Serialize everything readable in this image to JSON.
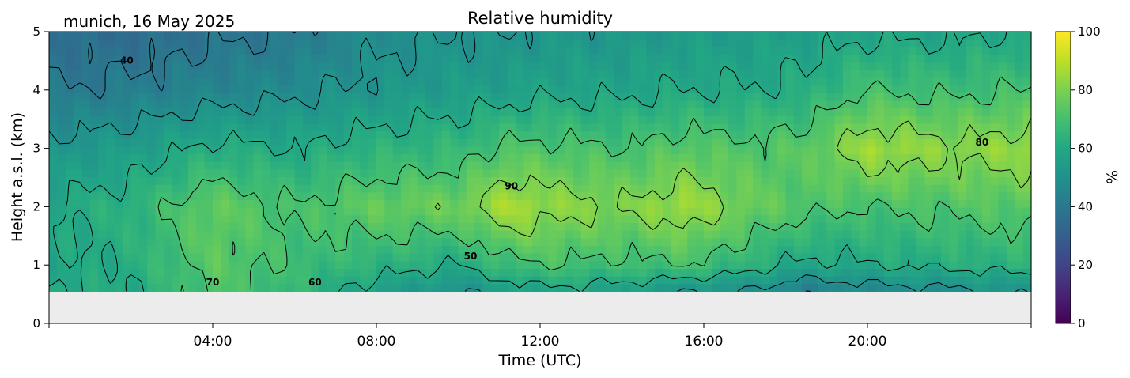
{
  "header": {
    "location_date": "munich, 16 May 2025"
  },
  "chart_data": {
    "type": "heatmap",
    "title": "Relative humidity",
    "xlabel": "Time (UTC)",
    "ylabel": "Height a.s.l. (km)",
    "xlim_hours": [
      0,
      24
    ],
    "ylim_km": [
      0,
      5
    ],
    "x_ticks": [
      {
        "hour": 4,
        "label": "04:00"
      },
      {
        "hour": 8,
        "label": "08:00"
      },
      {
        "hour": 12,
        "label": "12:00"
      },
      {
        "hour": 16,
        "label": "16:00"
      },
      {
        "hour": 20,
        "label": "20:00"
      }
    ],
    "y_ticks": [
      {
        "value": 0,
        "label": "0"
      },
      {
        "value": 1,
        "label": "1"
      },
      {
        "value": 2,
        "label": "2"
      },
      {
        "value": 3,
        "label": "3"
      },
      {
        "value": 4,
        "label": "4"
      },
      {
        "value": 5,
        "label": "5"
      }
    ],
    "data_bottom_km": 0.55,
    "no_data_color": "#ececec",
    "colorbar": {
      "label": "%",
      "range": [
        0,
        100
      ],
      "colormap": "viridis",
      "ticks": [
        {
          "value": 0,
          "label": "0"
        },
        {
          "value": 20,
          "label": "20"
        },
        {
          "value": 40,
          "label": "40"
        },
        {
          "value": 60,
          "label": "60"
        },
        {
          "value": 80,
          "label": "80"
        },
        {
          "value": 100,
          "label": "100"
        }
      ]
    },
    "contour_levels": [
      40,
      50,
      60,
      70,
      80,
      90
    ],
    "contour_labels": [
      {
        "text": "40",
        "hour": 1.9,
        "km": 4.45
      },
      {
        "text": "70",
        "hour": 4.0,
        "km": 0.65
      },
      {
        "text": "60",
        "hour": 6.5,
        "km": 0.65
      },
      {
        "text": "50",
        "hour": 10.3,
        "km": 1.1
      },
      {
        "text": "90",
        "hour": 11.3,
        "km": 2.3
      },
      {
        "text": "80",
        "hour": 22.8,
        "km": 3.05
      }
    ],
    "humidity_profile_columns": [
      {
        "hour": 0.0,
        "rh_at_km": [
          [
            0.55,
            62
          ],
          [
            1.0,
            58
          ],
          [
            2.0,
            60
          ],
          [
            3.0,
            52
          ],
          [
            4.0,
            40
          ],
          [
            5.0,
            36
          ]
        ]
      },
      {
        "hour": 2.0,
        "rh_at_km": [
          [
            0.55,
            60
          ],
          [
            1.0,
            62
          ],
          [
            2.0,
            64
          ],
          [
            3.0,
            55
          ],
          [
            4.0,
            42
          ],
          [
            5.0,
            35
          ]
        ]
      },
      {
        "hour": 4.0,
        "rh_at_km": [
          [
            0.55,
            72
          ],
          [
            1.0,
            74
          ],
          [
            2.0,
            76
          ],
          [
            3.0,
            62
          ],
          [
            4.0,
            45
          ],
          [
            5.0,
            38
          ]
        ]
      },
      {
        "hour": 6.0,
        "rh_at_km": [
          [
            0.55,
            66
          ],
          [
            1.0,
            68
          ],
          [
            2.0,
            70
          ],
          [
            3.0,
            60
          ],
          [
            4.0,
            48
          ],
          [
            5.0,
            40
          ]
        ]
      },
      {
        "hour": 8.0,
        "rh_at_km": [
          [
            0.55,
            56
          ],
          [
            1.0,
            64
          ],
          [
            2.0,
            76
          ],
          [
            3.0,
            64
          ],
          [
            4.0,
            52
          ],
          [
            5.0,
            48
          ]
        ]
      },
      {
        "hour": 10.0,
        "rh_at_km": [
          [
            0.55,
            50
          ],
          [
            1.0,
            60
          ],
          [
            2.0,
            78
          ],
          [
            3.0,
            66
          ],
          [
            4.0,
            55
          ],
          [
            5.0,
            50
          ]
        ]
      },
      {
        "hour": 11.3,
        "rh_at_km": [
          [
            0.55,
            55
          ],
          [
            1.0,
            68
          ],
          [
            2.0,
            88
          ],
          [
            3.0,
            72
          ],
          [
            4.0,
            56
          ],
          [
            5.0,
            50
          ]
        ]
      },
      {
        "hour": 12.0,
        "rh_at_km": [
          [
            0.55,
            58
          ],
          [
            1.0,
            70
          ],
          [
            2.0,
            84
          ],
          [
            3.0,
            72
          ],
          [
            4.0,
            58
          ],
          [
            5.0,
            52
          ]
        ]
      },
      {
        "hour": 14.0,
        "rh_at_km": [
          [
            0.55,
            56
          ],
          [
            1.0,
            68
          ],
          [
            2.0,
            80
          ],
          [
            3.0,
            70
          ],
          [
            4.0,
            58
          ],
          [
            5.0,
            52
          ]
        ]
      },
      {
        "hour": 15.6,
        "rh_at_km": [
          [
            0.55,
            50
          ],
          [
            1.0,
            70
          ],
          [
            2.0,
            86
          ],
          [
            3.0,
            74
          ],
          [
            4.0,
            60
          ],
          [
            5.0,
            54
          ]
        ]
      },
      {
        "hour": 17.0,
        "rh_at_km": [
          [
            0.55,
            50
          ],
          [
            1.0,
            64
          ],
          [
            2.0,
            78
          ],
          [
            3.0,
            72
          ],
          [
            4.0,
            60
          ],
          [
            5.0,
            55
          ]
        ]
      },
      {
        "hour": 18.5,
        "rh_at_km": [
          [
            0.55,
            42
          ],
          [
            1.0,
            58
          ],
          [
            2.0,
            72
          ],
          [
            3.0,
            74
          ],
          [
            4.0,
            62
          ],
          [
            5.0,
            56
          ]
        ]
      },
      {
        "hour": 20.0,
        "rh_at_km": [
          [
            0.55,
            46
          ],
          [
            1.0,
            60
          ],
          [
            2.0,
            70
          ],
          [
            3.0,
            86
          ],
          [
            4.0,
            70
          ],
          [
            5.0,
            58
          ]
        ]
      },
      {
        "hour": 22.0,
        "rh_at_km": [
          [
            0.55,
            48
          ],
          [
            1.0,
            62
          ],
          [
            2.0,
            72
          ],
          [
            3.0,
            82
          ],
          [
            4.0,
            68
          ],
          [
            5.0,
            58
          ]
        ]
      },
      {
        "hour": 24.0,
        "rh_at_km": [
          [
            0.55,
            52
          ],
          [
            1.0,
            64
          ],
          [
            2.0,
            74
          ],
          [
            3.0,
            84
          ],
          [
            4.0,
            70
          ],
          [
            5.0,
            60
          ]
        ]
      }
    ]
  }
}
